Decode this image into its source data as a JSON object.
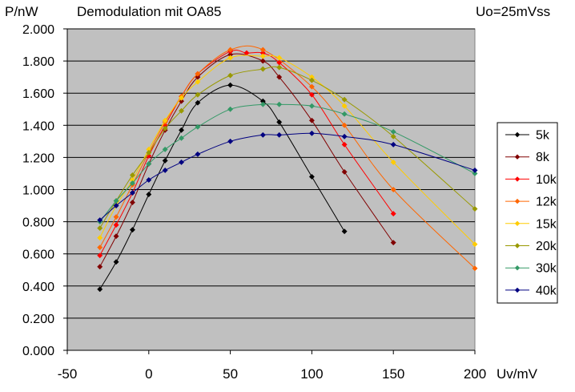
{
  "chart_data": {
    "type": "scatter",
    "title": "Demodulation mit OA85",
    "subtitle": "Uo=25mVss",
    "ylabel": "P/nW",
    "xlabel": "Uv/mV",
    "xlim": [
      -50,
      200
    ],
    "ylim": [
      0,
      2
    ],
    "xticks": [
      -50,
      0,
      50,
      100,
      150,
      200
    ],
    "xtick_labels": [
      "-50",
      "0",
      "50",
      "100",
      "150",
      "200"
    ],
    "yticks": [
      0,
      0.2,
      0.4,
      0.6,
      0.8,
      1.0,
      1.2,
      1.4,
      1.6,
      1.8,
      2.0
    ],
    "ytick_labels": [
      "0.000",
      "0.200",
      "0.400",
      "0.600",
      "0.800",
      "1.000",
      "1.200",
      "1.400",
      "1.600",
      "1.800",
      "2.000"
    ],
    "grid": true,
    "legend_position": "right",
    "series": [
      {
        "name": "5k",
        "color": "#000000",
        "x": [
          -30,
          -20,
          -10,
          0,
          10,
          20,
          30,
          50,
          70,
          80,
          100,
          120
        ],
        "y": [
          0.38,
          0.55,
          0.75,
          0.97,
          1.18,
          1.37,
          1.54,
          1.65,
          1.55,
          1.42,
          1.08,
          0.74
        ]
      },
      {
        "name": "8k",
        "color": "#800000",
        "x": [
          -30,
          -20,
          -10,
          0,
          10,
          20,
          30,
          50,
          70,
          80,
          100,
          120,
          150
        ],
        "y": [
          0.52,
          0.71,
          0.92,
          1.16,
          1.37,
          1.55,
          1.7,
          1.84,
          1.8,
          1.7,
          1.43,
          1.11,
          0.67
        ]
      },
      {
        "name": "10k",
        "color": "#ff0000",
        "x": [
          -30,
          -20,
          -10,
          0,
          10,
          20,
          30,
          50,
          60,
          70,
          80,
          100,
          120,
          150
        ],
        "y": [
          0.59,
          0.78,
          0.98,
          1.21,
          1.4,
          1.58,
          1.72,
          1.86,
          1.85,
          1.85,
          1.79,
          1.59,
          1.28,
          0.85
        ]
      },
      {
        "name": "12k",
        "color": "#ff6600",
        "x": [
          -30,
          -20,
          -10,
          0,
          10,
          20,
          30,
          50,
          70,
          100,
          120,
          150,
          200
        ],
        "y": [
          0.64,
          0.83,
          1.03,
          1.23,
          1.42,
          1.58,
          1.72,
          1.87,
          1.87,
          1.64,
          1.4,
          1.0,
          0.51
        ]
      },
      {
        "name": "15k",
        "color": "#ffcc00",
        "x": [
          -30,
          -20,
          -10,
          0,
          10,
          20,
          30,
          50,
          70,
          80,
          100,
          120,
          150,
          200
        ],
        "y": [
          0.7,
          0.9,
          1.06,
          1.25,
          1.43,
          1.57,
          1.67,
          1.82,
          1.83,
          1.82,
          1.7,
          1.52,
          1.17,
          0.66
        ]
      },
      {
        "name": "20k",
        "color": "#999900",
        "x": [
          -30,
          -20,
          -10,
          0,
          10,
          20,
          30,
          50,
          70,
          80,
          100,
          120,
          150,
          200
        ],
        "y": [
          0.76,
          0.93,
          1.09,
          1.23,
          1.38,
          1.49,
          1.59,
          1.71,
          1.75,
          1.76,
          1.68,
          1.56,
          1.33,
          0.88
        ]
      },
      {
        "name": "30k",
        "color": "#339966",
        "x": [
          -30,
          -20,
          -10,
          0,
          10,
          20,
          30,
          50,
          70,
          80,
          100,
          120,
          150,
          200
        ],
        "y": [
          0.8,
          0.93,
          1.04,
          1.16,
          1.25,
          1.32,
          1.39,
          1.5,
          1.53,
          1.53,
          1.52,
          1.47,
          1.36,
          1.1
        ]
      },
      {
        "name": "40k",
        "color": "#000080",
        "x": [
          -30,
          -20,
          -10,
          0,
          10,
          20,
          30,
          50,
          70,
          80,
          100,
          120,
          150,
          200
        ],
        "y": [
          0.81,
          0.9,
          0.98,
          1.06,
          1.12,
          1.17,
          1.22,
          1.3,
          1.34,
          1.34,
          1.35,
          1.33,
          1.28,
          1.12
        ]
      }
    ]
  }
}
